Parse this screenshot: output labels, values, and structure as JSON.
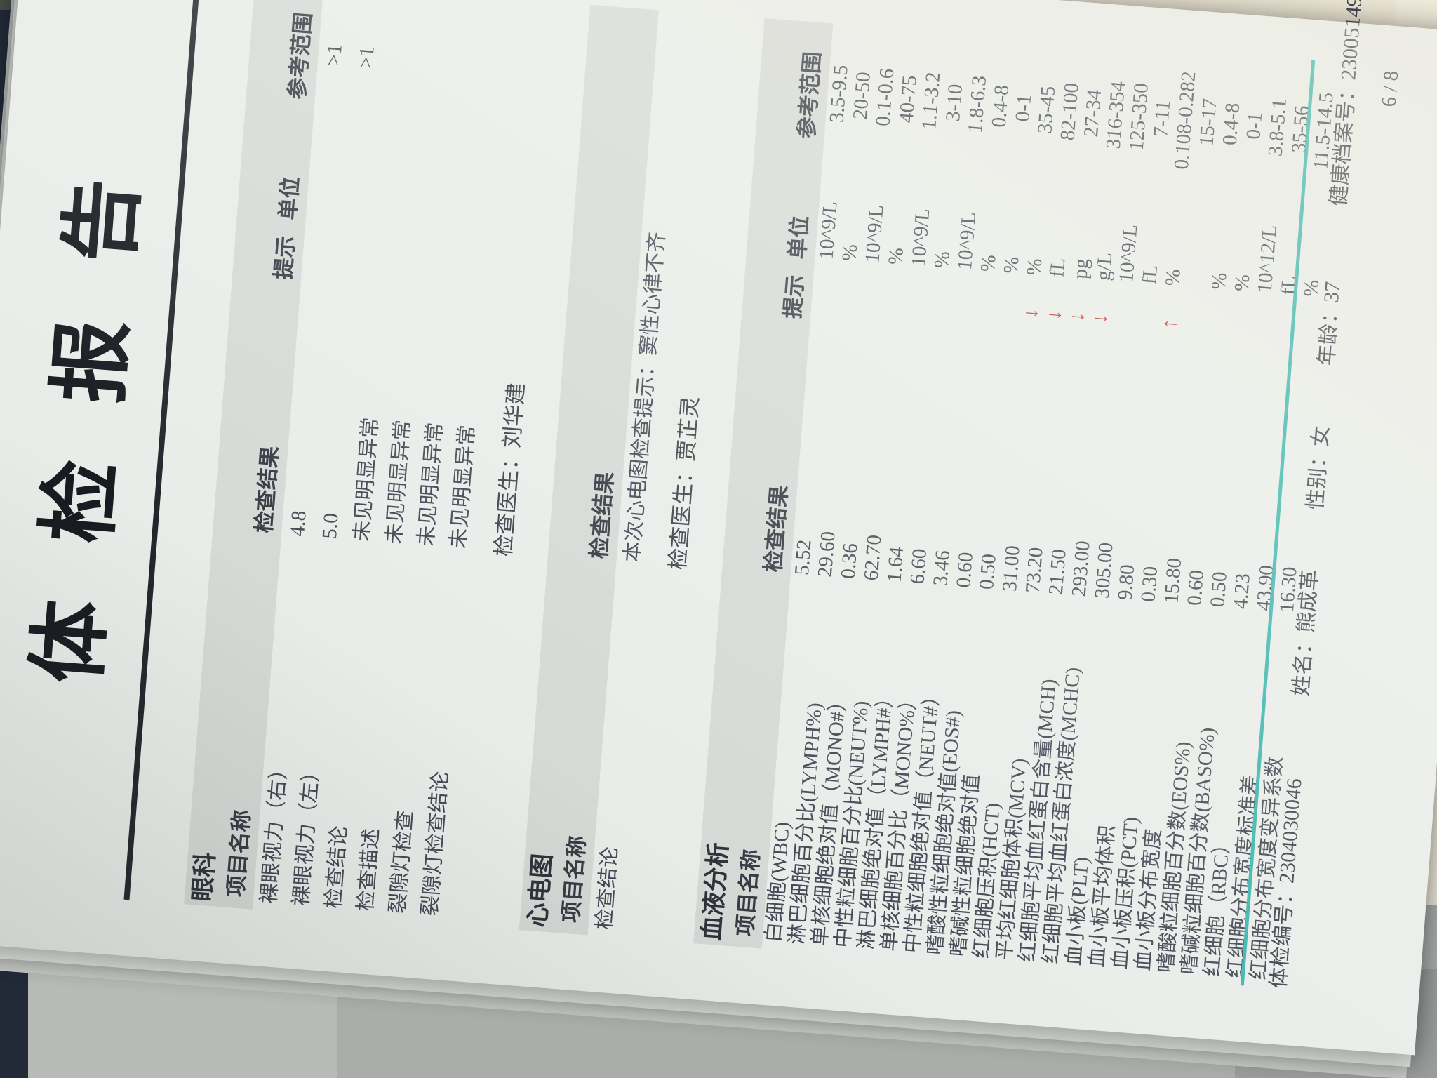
{
  "photo": {
    "page_bg": "#e9ece8",
    "accent_teal": "#3bb6ae",
    "arrow_red": "#c2342a"
  },
  "report": {
    "title": "体检报告",
    "doctor_label": "检查医生：",
    "columns": {
      "item": "项目名称",
      "result": "检查结果",
      "hint": "提示",
      "unit": "单位",
      "range": "参考范围"
    },
    "sections": [
      {
        "name": "眼科",
        "doctor": "刘华建",
        "rows": [
          {
            "item": "裸眼视力（右）",
            "result": "4.8",
            "hint": "",
            "unit": "",
            "range": ">1"
          },
          {
            "item": "裸眼视力（左）",
            "result": "5.0",
            "hint": "",
            "unit": "",
            "range": ">1"
          },
          {
            "item": "检查结论",
            "result": "未见明显异常",
            "hint": "",
            "unit": "",
            "range": ""
          },
          {
            "item": "检查描述",
            "result": "未见明显异常",
            "hint": "",
            "unit": "",
            "range": ""
          },
          {
            "item": "裂隙灯检查",
            "result": "未见明显异常",
            "hint": "",
            "unit": "",
            "range": ""
          },
          {
            "item": "裂隙灯检查结论",
            "result": "未见明显异常",
            "hint": "",
            "unit": "",
            "range": ""
          }
        ]
      },
      {
        "name": "心电图",
        "doctor": "贾芷灵",
        "rows": [
          {
            "item": "检查结论",
            "result": "本次心电图检查提示：窦性心律不齐",
            "hint": "",
            "unit": "",
            "range": ""
          }
        ]
      },
      {
        "name": "血液分析",
        "doctor": "",
        "rows": [
          {
            "item": "白细胞(WBC)",
            "result": "5.52",
            "hint": "",
            "unit": "10^9/L",
            "range": "3.5-9.5"
          },
          {
            "item": "淋巴细胞百分比(LYMPH%)",
            "result": "29.60",
            "hint": "",
            "unit": "%",
            "range": "20-50"
          },
          {
            "item": "单核细胞绝对值（MONO#）",
            "result": "0.36",
            "hint": "",
            "unit": "10^9/L",
            "range": "0.1-0.6"
          },
          {
            "item": "中性粒细胞百分比(NEUT%)",
            "result": "62.70",
            "hint": "",
            "unit": "%",
            "range": "40-75"
          },
          {
            "item": "淋巴细胞绝对值（LYMPH#）",
            "result": "1.64",
            "hint": "",
            "unit": "10^9/L",
            "range": "1.1-3.2"
          },
          {
            "item": "单核细胞百分比（MONO%）",
            "result": "6.60",
            "hint": "",
            "unit": "%",
            "range": "3-10"
          },
          {
            "item": "中性粒细胞绝对值（NEUT#）",
            "result": "3.46",
            "hint": "",
            "unit": "10^9/L",
            "range": "1.8-6.3"
          },
          {
            "item": "嗜酸性粒细胞绝对值(EOS#)",
            "result": "0.60",
            "hint": "",
            "unit": "%",
            "range": "0.4-8"
          },
          {
            "item": "嗜碱性粒细胞绝对值",
            "result": "0.50",
            "hint": "",
            "unit": "%",
            "range": "0-1"
          },
          {
            "item": "红细胞压积(HCT)",
            "result": "31.00",
            "hint": "↓",
            "unit": "%",
            "range": "35-45"
          },
          {
            "item": "平均红细胞体积(MCV)",
            "result": "73.20",
            "hint": "↓",
            "unit": "fL",
            "range": "82-100"
          },
          {
            "item": "红细胞平均血红蛋白含量(MCH)",
            "result": "21.50",
            "hint": "↓",
            "unit": "pg",
            "range": "27-34"
          },
          {
            "item": "红细胞平均血红蛋白浓度(MCHC)",
            "result": "293.00",
            "hint": "↓",
            "unit": "g/L",
            "range": "316-354"
          },
          {
            "item": "血小板(PLT)",
            "result": "305.00",
            "hint": "",
            "unit": "10^9/L",
            "range": "125-350"
          },
          {
            "item": "血小板平均体积",
            "result": "9.80",
            "hint": "",
            "unit": "fL",
            "range": "7-11"
          },
          {
            "item": "血小板压积(PCT)",
            "result": "0.30",
            "hint": "↑",
            "unit": "%",
            "range": "0.108-0.282"
          },
          {
            "item": "血小板分布宽度",
            "result": "15.80",
            "hint": "",
            "unit": "",
            "range": "15-17"
          },
          {
            "item": "嗜酸粒细胞百分数(EOS%)",
            "result": "0.60",
            "hint": "",
            "unit": "%",
            "range": "0.4-8"
          },
          {
            "item": "嗜碱粒细胞百分数(BASO%)",
            "result": "0.50",
            "hint": "",
            "unit": "%",
            "range": "0-1"
          },
          {
            "item": "红细胞（RBC）",
            "result": "4.23",
            "hint": "",
            "unit": "10^12/L",
            "range": "3.8-5.1"
          },
          {
            "item": "红细胞分布宽度标准差",
            "result": "43.90",
            "hint": "",
            "unit": "fL",
            "range": "35-56"
          },
          {
            "item": "红细胞分布宽度变异系数",
            "result": "16.30",
            "hint": "",
            "unit": "%",
            "range": "11.5-14.5"
          }
        ]
      }
    ],
    "footer": {
      "exam_no_label": "体检编号：",
      "exam_no": "2304030046",
      "name_label": "姓名：",
      "name": "熊成革",
      "gender_label": "性别：",
      "gender": "女",
      "age_label": "年龄：",
      "age": "37",
      "record_label": "健康档案号：",
      "record_no": "23005149",
      "page_number": "6 / 8"
    }
  }
}
